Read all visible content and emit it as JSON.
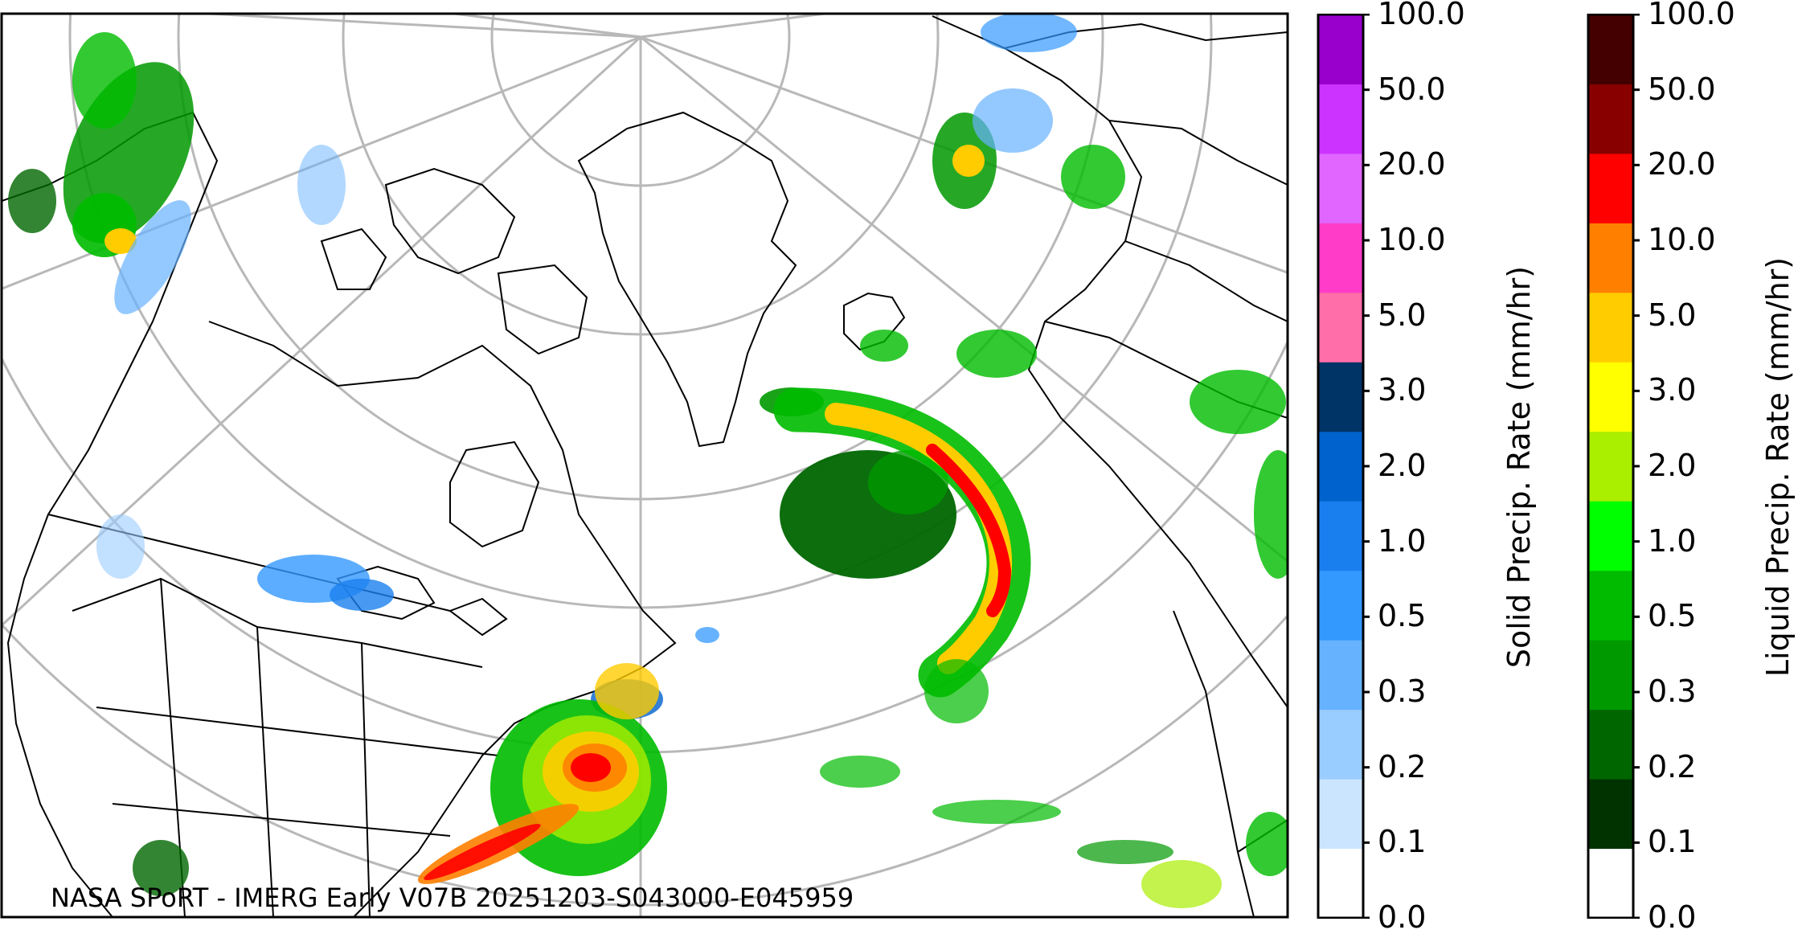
{
  "credit": "NASA SPoRT - IMERG Early V07B 20251203-S043000-E045959",
  "solid_colorbar": {
    "label": "Solid Precip. Rate (mm/hr)",
    "ticks": [
      "0.0",
      "0.1",
      "0.2",
      "0.3",
      "0.5",
      "1.0",
      "2.0",
      "3.0",
      "5.0",
      "10.0",
      "20.0",
      "50.0",
      "100.0"
    ],
    "colors": [
      "#ffffff",
      "#cce5ff",
      "#99ccff",
      "#66b2ff",
      "#3399ff",
      "#1a7fee",
      "#0062cc",
      "#003366",
      "#ff6ea8",
      "#ff3cc8",
      "#e066ff",
      "#cc33ff",
      "#9900cc"
    ]
  },
  "liquid_colorbar": {
    "label": "Liquid Precip. Rate (mm/hr)",
    "ticks": [
      "0.0",
      "0.1",
      "0.2",
      "0.3",
      "0.5",
      "1.0",
      "2.0",
      "3.0",
      "5.0",
      "10.0",
      "20.0",
      "50.0",
      "100.0"
    ],
    "colors": [
      "#ffffff",
      "#003300",
      "#006600",
      "#009900",
      "#00bb00",
      "#00ff00",
      "#aaee00",
      "#ffff00",
      "#ffcc00",
      "#ff8000",
      "#ff0000",
      "#880000",
      "#440000"
    ]
  }
}
